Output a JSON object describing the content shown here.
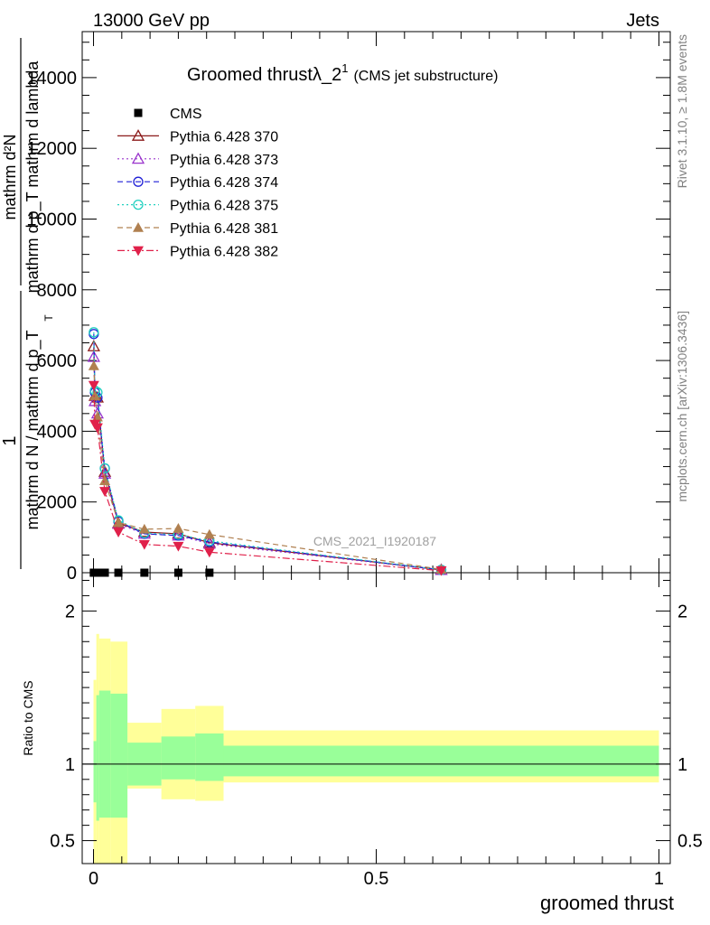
{
  "header": {
    "left": "13000 GeV pp",
    "right": "Jets",
    "title_main": "Groomed thrust",
    "title_lambda": "λ_2",
    "title_sup": "1",
    "title_sub": "(CMS jet substructure)",
    "side_top": "Rivet 3.1.10, ≥ 1.8M events",
    "side_bottom": "mcplots.cern.ch [arXiv:1306.3436]",
    "watermark": "CMS_2021_I1920187"
  },
  "ylabel_main": {
    "one": "1",
    "denom": "mathrm d N / mathrm d p_T",
    "T": "T",
    "numer_top": "mathrm d²N",
    "numer_bottom": "mathrm d p_T mathrm d lambda"
  },
  "ylabel_ratio": "Ratio to CMS",
  "xlabel": "groomed thrust",
  "chart_data": [
    {
      "type": "line",
      "panel": "main",
      "xlim": [
        -0.02,
        1.02
      ],
      "ylim": [
        0,
        15300
      ],
      "xticks": [
        0,
        0.5,
        1
      ],
      "yticks": [
        2000,
        4000,
        6000,
        8000,
        10000,
        12000,
        14000
      ],
      "ytick_labels": [
        "2000",
        "4000",
        "6000",
        "8000",
        "10000",
        "12000",
        "14000"
      ],
      "legend_position": "top-left",
      "series": [
        {
          "name": "CMS",
          "color": "#000000",
          "marker": "square",
          "dash": "none",
          "x": [
            0.0005,
            0.0025,
            0.007,
            0.02,
            0.044,
            0.09,
            0.15,
            0.205
          ],
          "y": [
            0,
            0,
            0,
            0,
            0,
            0,
            0,
            0
          ]
        },
        {
          "name": "Pythia 6.428 370",
          "color": "#8b1a1a",
          "marker": "triangle-open",
          "dash": "solid",
          "x": [
            0.0005,
            0.0025,
            0.007,
            0.02,
            0.044,
            0.09,
            0.15,
            0.205,
            0.615
          ],
          "y": [
            6400,
            5000,
            4950,
            2850,
            1400,
            1150,
            1100,
            850,
            80
          ]
        },
        {
          "name": "Pythia 6.428 373",
          "color": "#9933cc",
          "marker": "triangle-open",
          "dash": "dotted",
          "x": [
            0.0005,
            0.0025,
            0.007,
            0.02,
            0.044,
            0.09,
            0.15,
            0.205,
            0.615
          ],
          "y": [
            6100,
            4850,
            4500,
            2800,
            1380,
            1100,
            1050,
            820,
            75
          ]
        },
        {
          "name": "Pythia 6.428 374",
          "color": "#1f1fd6",
          "marker": "circle-open",
          "dash": "dashed",
          "x": [
            0.0005,
            0.0025,
            0.007,
            0.02,
            0.044,
            0.09,
            0.15,
            0.205,
            0.615
          ],
          "y": [
            6750,
            5100,
            4950,
            2950,
            1450,
            1100,
            1050,
            870,
            80
          ]
        },
        {
          "name": "Pythia 6.428 375",
          "color": "#22d0c0",
          "marker": "circle-open",
          "dash": "dotted",
          "x": [
            0.0005,
            0.0025,
            0.007,
            0.02,
            0.044,
            0.09,
            0.15,
            0.205,
            0.615
          ],
          "y": [
            6800,
            5150,
            5100,
            2950,
            1480,
            1120,
            1080,
            900,
            80
          ]
        },
        {
          "name": "Pythia 6.428 381",
          "color": "#b08050",
          "marker": "triangle-filled",
          "dash": "dashed",
          "x": [
            0.0005,
            0.0025,
            0.007,
            0.02,
            0.044,
            0.09,
            0.15,
            0.205,
            0.615
          ],
          "y": [
            5850,
            5000,
            4400,
            2600,
            1420,
            1230,
            1250,
            1080,
            95
          ]
        },
        {
          "name": "Pythia 6.428 382",
          "color": "#e0204a",
          "marker": "triangle-down-filled",
          "dash": "dashdot",
          "x": [
            0.0005,
            0.0025,
            0.007,
            0.02,
            0.044,
            0.09,
            0.15,
            0.205,
            0.615
          ],
          "y": [
            5300,
            4200,
            4100,
            2300,
            1150,
            800,
            750,
            580,
            60
          ]
        }
      ]
    },
    {
      "type": "area",
      "panel": "ratio",
      "xlim": [
        -0.02,
        1.02
      ],
      "ylim": [
        0.35,
        2.25
      ],
      "xticks": [
        0,
        0.5,
        1
      ],
      "xtick_labels": [
        "0",
        "0.5",
        "1"
      ],
      "yticks": [
        0.5,
        1,
        2
      ],
      "ytick_labels": [
        "0.5",
        "1",
        "2"
      ],
      "reference_line": 1,
      "bin_edges": [
        0,
        0.005,
        0.01,
        0.03,
        0.06,
        0.12,
        0.18,
        0.23,
        1.0
      ],
      "band_inner": {
        "color": "#99ff99",
        "lower": [
          0.75,
          0.63,
          0.65,
          0.65,
          0.86,
          0.9,
          0.89,
          0.92
        ],
        "upper": [
          1.15,
          1.45,
          1.48,
          1.46,
          1.14,
          1.18,
          1.2,
          1.12
        ]
      },
      "band_outer": {
        "color": "#ffff99",
        "lower": [
          0.35,
          0.35,
          0.35,
          0.35,
          0.84,
          0.77,
          0.76,
          0.88
        ],
        "upper": [
          1.55,
          1.85,
          1.82,
          1.8,
          1.27,
          1.36,
          1.38,
          1.22
        ]
      }
    }
  ]
}
